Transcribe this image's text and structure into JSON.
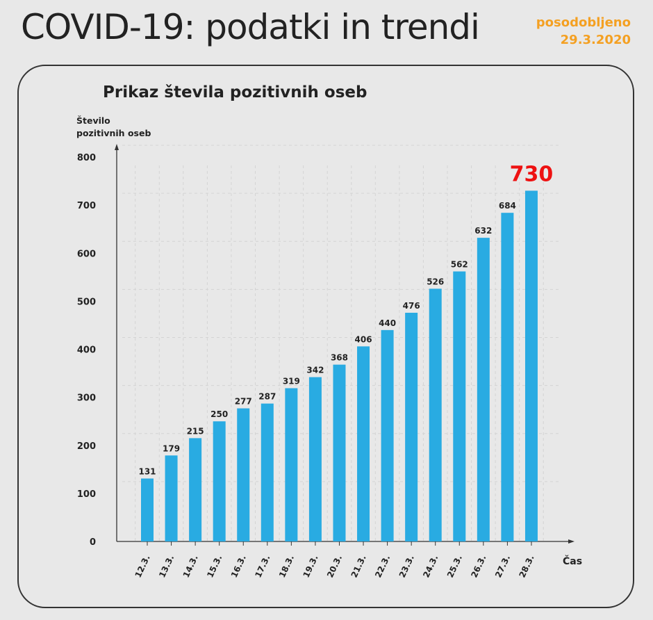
{
  "header": {
    "title": "COVID-19: podatki in trendi",
    "updated_label": "posodobljeno",
    "updated_date": "29.3.2020"
  },
  "colors": {
    "bar": "#29abe2",
    "highlight": "#ee1111",
    "accent": "#f4a022"
  },
  "chart_data": {
    "type": "bar",
    "title": "Prikaz števila pozitivnih oseb",
    "ylabel": "Število pozitivnih oseb",
    "xlabel": "Čas",
    "ylim": [
      0,
      800
    ],
    "yticks": [
      0,
      100,
      200,
      300,
      400,
      500,
      600,
      700,
      800
    ],
    "grid": true,
    "categories": [
      "12.3.",
      "13.3.",
      "14.3.",
      "15.3.",
      "16.3.",
      "17.3.",
      "18.3.",
      "19.3.",
      "20.3.",
      "21.3.",
      "22.3.",
      "23.3.",
      "24.3.",
      "25.3.",
      "26.3.",
      "27.3.",
      "28.3."
    ],
    "values": [
      131,
      179,
      215,
      250,
      277,
      287,
      319,
      342,
      368,
      406,
      440,
      476,
      526,
      562,
      632,
      684,
      730
    ],
    "highlight_last": true
  }
}
